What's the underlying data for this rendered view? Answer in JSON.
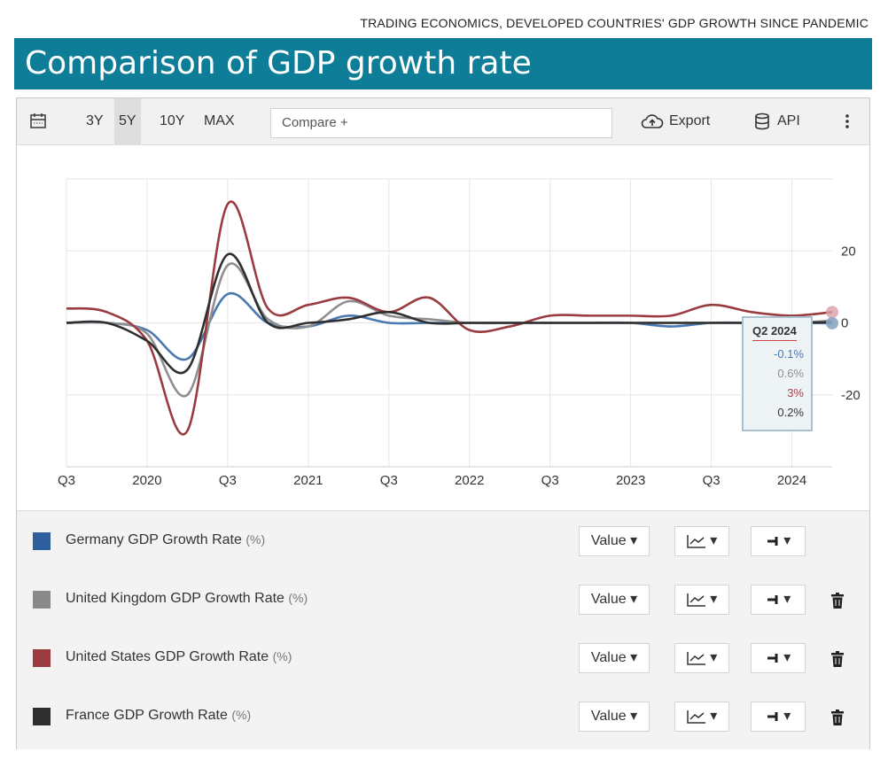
{
  "header": {
    "source_line": "TRADING ECONOMICS, DEVELOPED COUNTRIES' GDP GROWTH SINCE PANDEMIC",
    "title": "Comparison of GDP growth rate"
  },
  "toolbar": {
    "ranges": [
      "3Y",
      "5Y",
      "10Y",
      "MAX"
    ],
    "active_range": "5Y",
    "compare_placeholder": "Compare +",
    "export_label": "Export",
    "api_label": "API"
  },
  "tooltip": {
    "title": "Q2 2024",
    "values": [
      "-0.1%",
      "0.6%",
      "3%",
      "0.2%"
    ]
  },
  "legend": [
    {
      "label": "Germany GDP Growth Rate",
      "unit": "(%)",
      "color": "#2e5e9c",
      "deletable": false
    },
    {
      "label": "United Kingdom GDP Growth Rate",
      "unit": "(%)",
      "color": "#8a8a8a",
      "deletable": true
    },
    {
      "label": "United States GDP Growth Rate",
      "unit": "(%)",
      "color": "#9a3b40",
      "deletable": true
    },
    {
      "label": "France GDP Growth Rate",
      "unit": "(%)",
      "color": "#2f2f2f",
      "deletable": true
    }
  ],
  "controls": {
    "value_label": "Value"
  },
  "chart_data": {
    "type": "line",
    "x_tick_labels": [
      "Q3",
      "2020",
      "Q3",
      "2021",
      "Q3",
      "2022",
      "Q3",
      "2023",
      "Q3",
      "2024"
    ],
    "y_ticks": [
      20,
      0,
      -20
    ],
    "ylim": [
      -40,
      40
    ],
    "x": [
      "2019Q3",
      "2019Q4",
      "2020Q1",
      "2020Q2",
      "2020Q3",
      "2020Q4",
      "2021Q1",
      "2021Q2",
      "2021Q3",
      "2021Q4",
      "2022Q1",
      "2022Q2",
      "2022Q3",
      "2022Q4",
      "2023Q1",
      "2023Q2",
      "2023Q3",
      "2023Q4",
      "2024Q1",
      "2024Q2"
    ],
    "series": [
      {
        "name": "Germany GDP Growth Rate",
        "color": "#4a78b0",
        "values": [
          0,
          0,
          -2,
          -10,
          8,
          0,
          -1,
          2,
          0,
          0,
          0,
          0,
          0,
          0,
          0,
          -1,
          0,
          0,
          0,
          -0.1
        ]
      },
      {
        "name": "United Kingdom GDP Growth Rate",
        "color": "#8f8f8f",
        "values": [
          0,
          0,
          -3,
          -20,
          16,
          1,
          -1,
          6,
          2,
          1,
          0,
          0,
          0,
          0,
          0,
          0,
          0,
          0,
          0,
          0.6
        ]
      },
      {
        "name": "United States GDP Growth Rate",
        "color": "#9a3b40",
        "values": [
          4,
          3,
          -5,
          -30,
          33,
          4,
          5,
          7,
          3,
          7,
          -2,
          -1,
          2,
          2,
          2,
          2,
          5,
          3,
          2,
          3
        ]
      },
      {
        "name": "France GDP Growth Rate",
        "color": "#2f2f2f",
        "values": [
          0,
          0,
          -5,
          -13,
          19,
          0,
          0,
          1,
          3,
          0,
          0,
          0,
          0,
          0,
          0,
          0,
          0,
          0,
          0,
          0.2
        ]
      }
    ]
  }
}
